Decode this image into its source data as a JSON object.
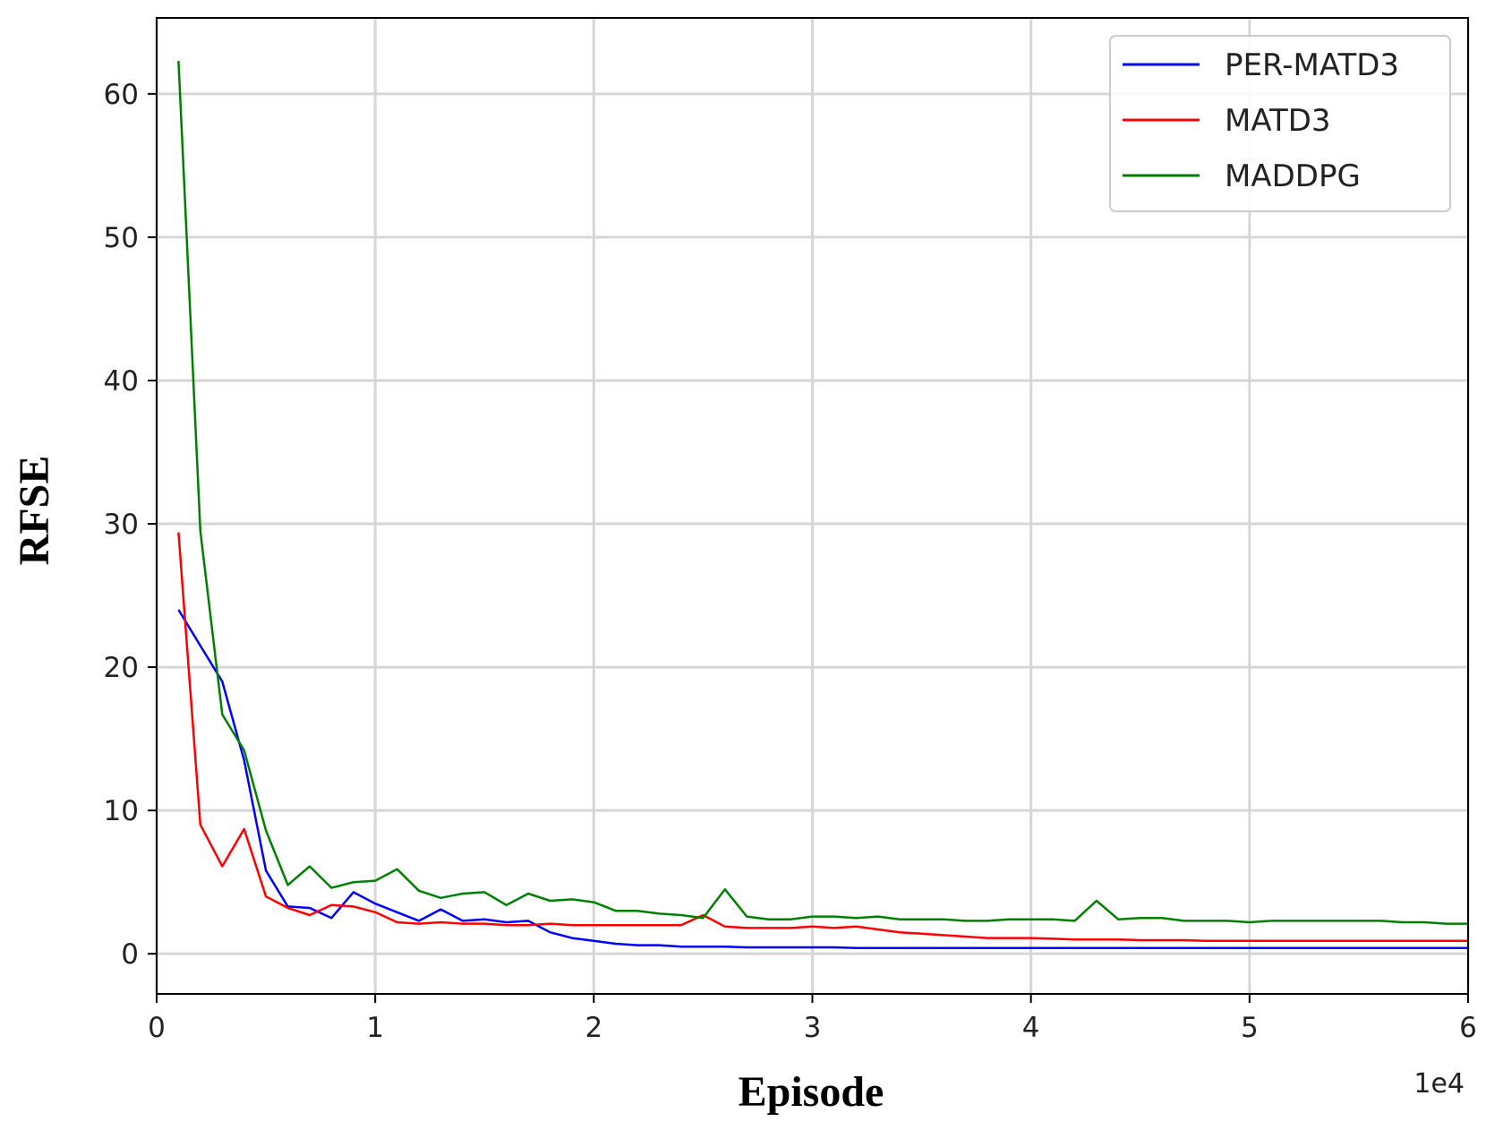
{
  "chart_data": {
    "type": "line",
    "xlabel": "Episode",
    "ylabel": "RFSE",
    "x_offset_label": "1e4",
    "xlim": [
      0,
      60000
    ],
    "ylim": [
      -2.8,
      65.3
    ],
    "xticks": [
      0,
      10000,
      20000,
      30000,
      40000,
      50000,
      60000
    ],
    "xtick_labels": [
      "0",
      "1",
      "2",
      "3",
      "4",
      "5",
      "6"
    ],
    "yticks": [
      0,
      10,
      20,
      30,
      40,
      50,
      60
    ],
    "ytick_labels": [
      "0",
      "10",
      "20",
      "30",
      "40",
      "50",
      "60"
    ],
    "grid": true,
    "legend_position": "top-right",
    "x": [
      1000,
      2000,
      3000,
      4000,
      5000,
      6000,
      7000,
      8000,
      9000,
      10000,
      11000,
      12000,
      13000,
      14000,
      15000,
      16000,
      17000,
      18000,
      19000,
      20000,
      21000,
      22000,
      23000,
      24000,
      25000,
      26000,
      27000,
      28000,
      29000,
      30000,
      31000,
      32000,
      33000,
      34000,
      35000,
      36000,
      37000,
      38000,
      39000,
      40000,
      41000,
      42000,
      43000,
      44000,
      45000,
      46000,
      47000,
      48000,
      49000,
      50000,
      51000,
      52000,
      53000,
      54000,
      55000,
      56000,
      57000,
      58000,
      59000,
      60000
    ],
    "series": [
      {
        "name": "PER-MATD3",
        "color": "#0000ff",
        "values": [
          24.0,
          21.5,
          19.0,
          13.5,
          5.8,
          3.3,
          3.2,
          2.5,
          4.3,
          3.5,
          2.9,
          2.3,
          3.1,
          2.3,
          2.4,
          2.2,
          2.3,
          1.5,
          1.1,
          0.9,
          0.7,
          0.6,
          0.6,
          0.5,
          0.5,
          0.5,
          0.45,
          0.45,
          0.45,
          0.45,
          0.45,
          0.4,
          0.4,
          0.4,
          0.4,
          0.4,
          0.4,
          0.4,
          0.4,
          0.4,
          0.4,
          0.4,
          0.4,
          0.4,
          0.4,
          0.4,
          0.4,
          0.4,
          0.4,
          0.4,
          0.4,
          0.4,
          0.4,
          0.4,
          0.4,
          0.4,
          0.4,
          0.4,
          0.4,
          0.4
        ]
      },
      {
        "name": "MATD3",
        "color": "#ff0000",
        "values": [
          29.4,
          9.0,
          6.1,
          8.7,
          4.0,
          3.2,
          2.7,
          3.4,
          3.3,
          2.9,
          2.2,
          2.1,
          2.2,
          2.1,
          2.1,
          2.0,
          2.0,
          2.1,
          2.0,
          2.0,
          2.0,
          2.0,
          2.0,
          2.0,
          2.7,
          1.9,
          1.8,
          1.8,
          1.8,
          1.9,
          1.8,
          1.9,
          1.7,
          1.5,
          1.4,
          1.3,
          1.2,
          1.1,
          1.1,
          1.1,
          1.05,
          1.0,
          1.0,
          1.0,
          0.95,
          0.95,
          0.95,
          0.9,
          0.9,
          0.9,
          0.9,
          0.9,
          0.9,
          0.9,
          0.9,
          0.9,
          0.9,
          0.9,
          0.9,
          0.9
        ]
      },
      {
        "name": "MADDPG",
        "color": "#008000",
        "values": [
          62.3,
          29.5,
          16.7,
          14.2,
          8.6,
          4.8,
          6.1,
          4.6,
          5.0,
          5.1,
          5.9,
          4.4,
          3.9,
          4.2,
          4.3,
          3.4,
          4.2,
          3.7,
          3.8,
          3.6,
          3.0,
          3.0,
          2.8,
          2.7,
          2.5,
          4.5,
          2.6,
          2.4,
          2.4,
          2.6,
          2.6,
          2.5,
          2.6,
          2.4,
          2.4,
          2.4,
          2.3,
          2.3,
          2.4,
          2.4,
          2.4,
          2.3,
          3.7,
          2.4,
          2.5,
          2.5,
          2.3,
          2.3,
          2.3,
          2.2,
          2.3,
          2.3,
          2.3,
          2.3,
          2.3,
          2.3,
          2.2,
          2.2,
          2.1,
          2.1
        ]
      }
    ]
  }
}
